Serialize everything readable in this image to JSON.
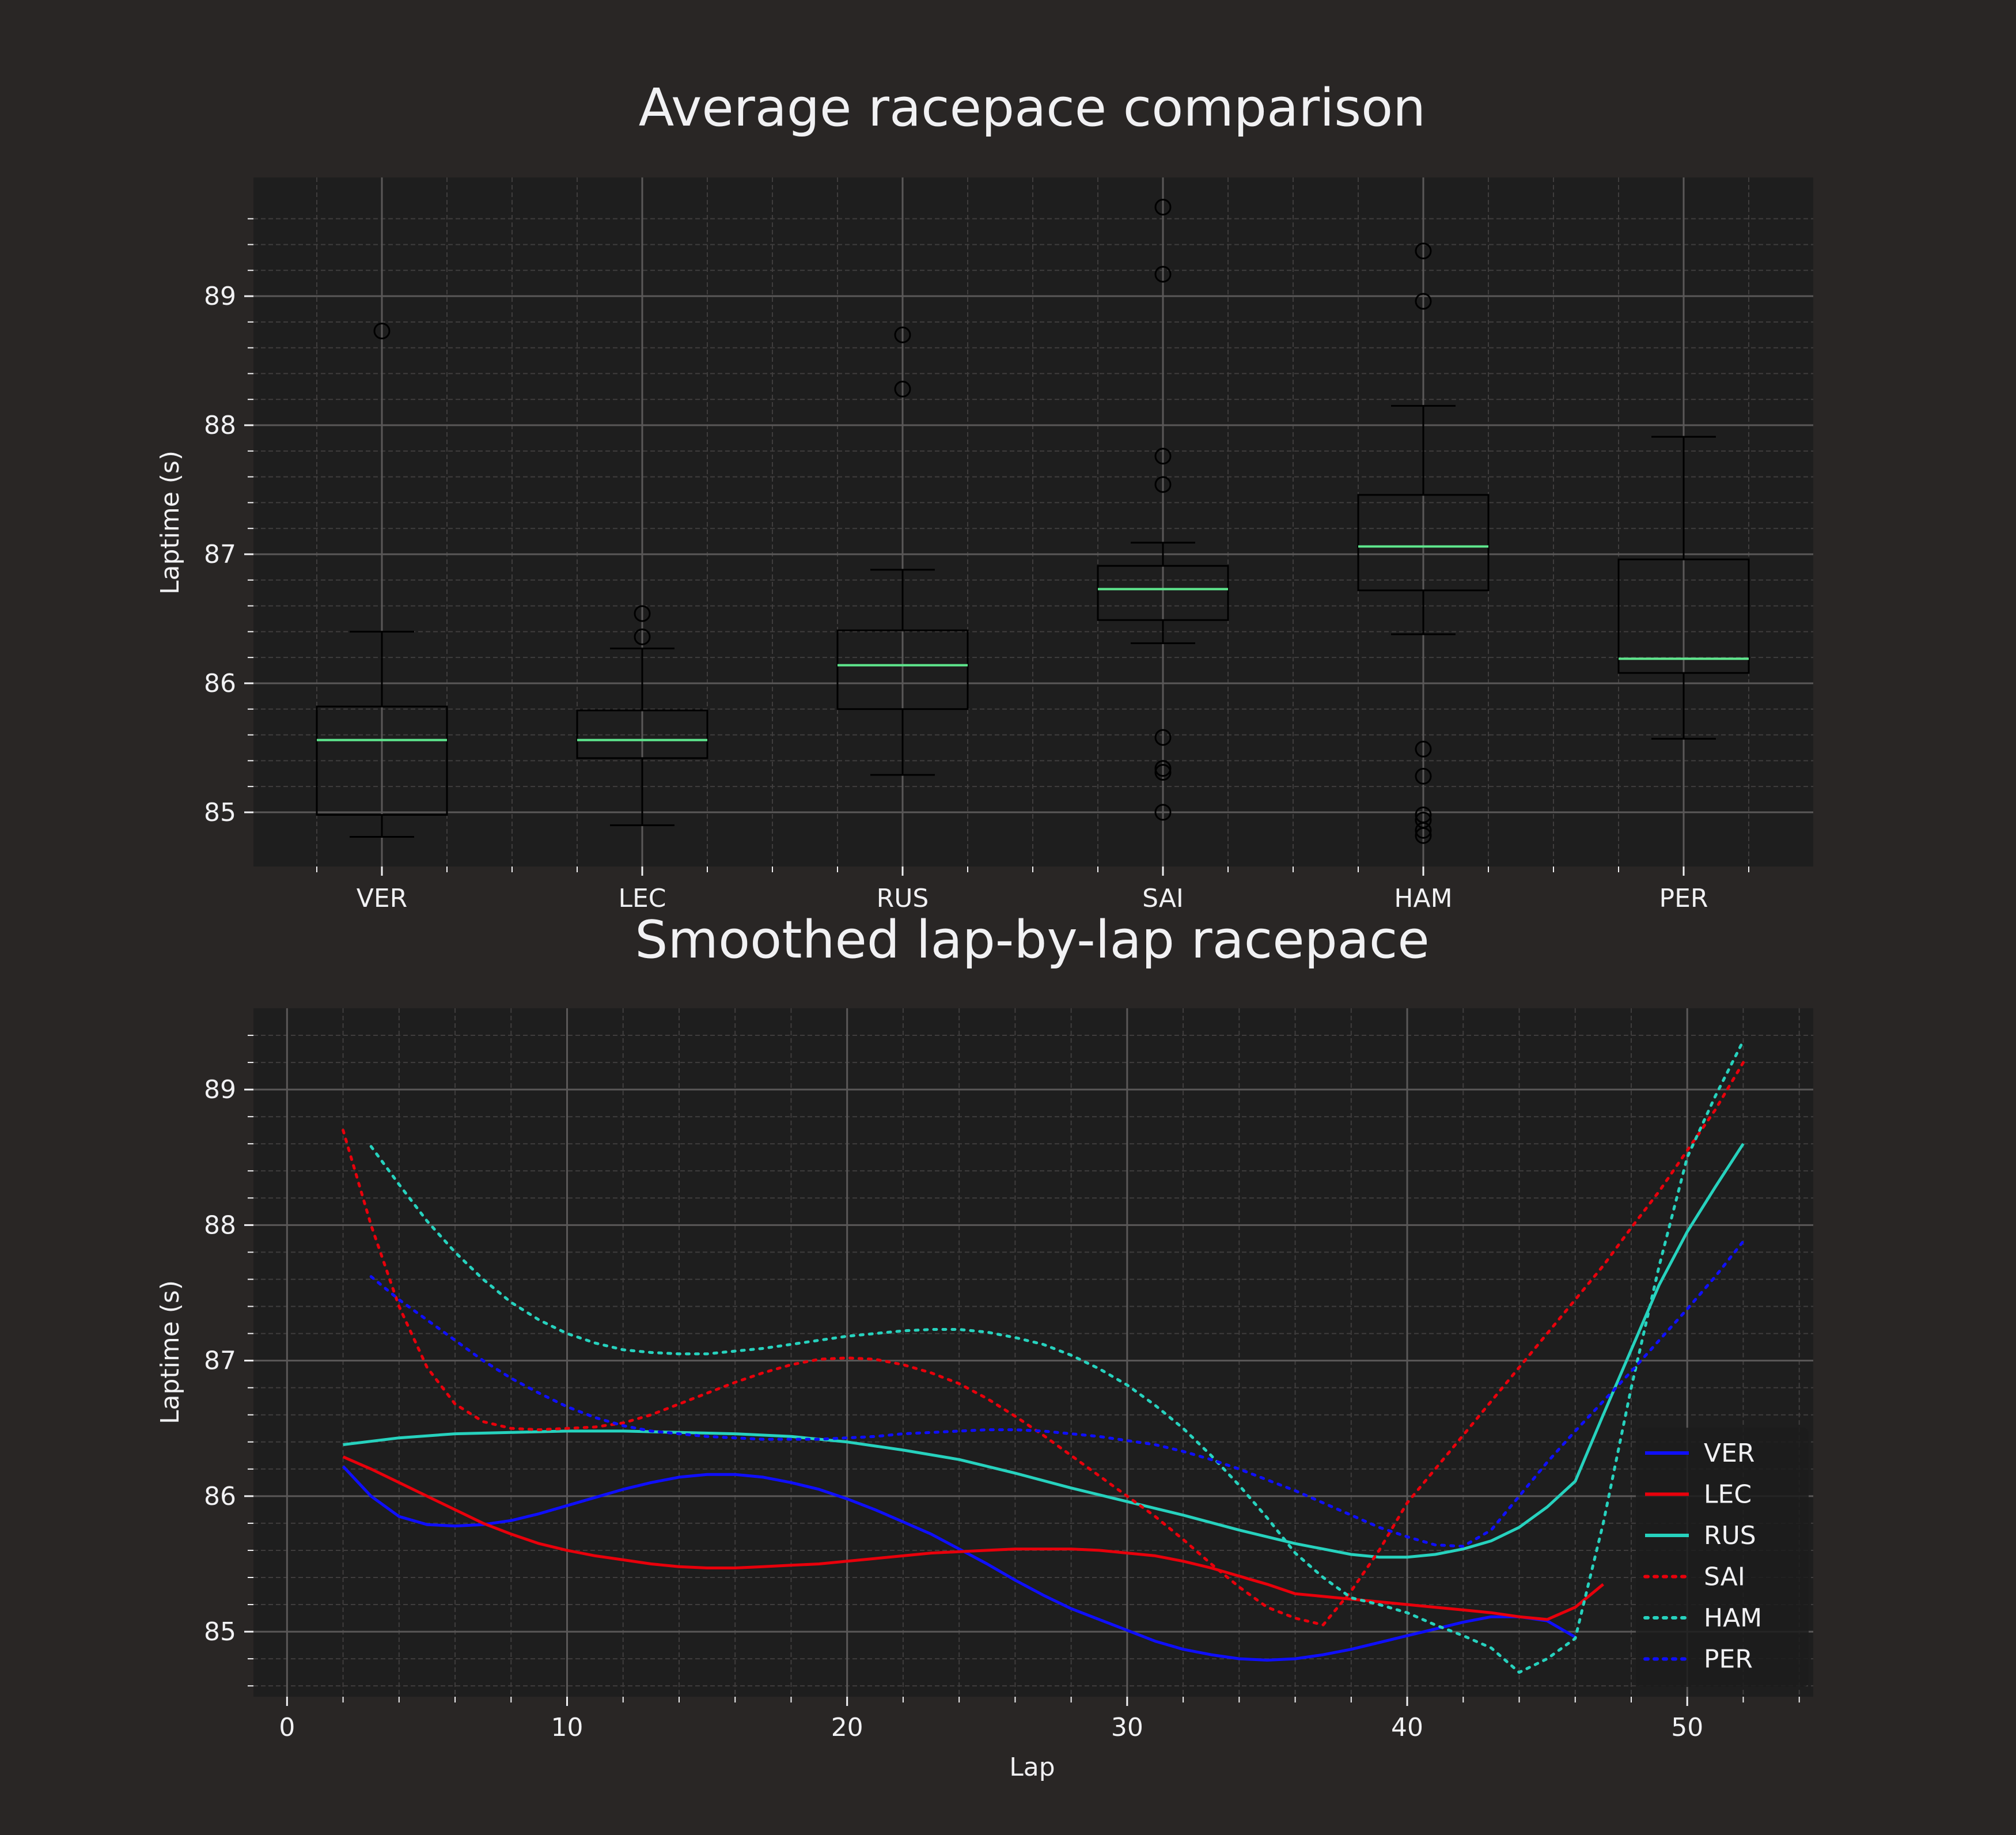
{
  "colors": {
    "figure_bg": "#292625",
    "axes_bg": "#1e1e1e",
    "text": "#f1f1f3",
    "grid_major": "#5a5858",
    "grid_minor": "#3f3d3d",
    "box": "#000000",
    "median": "#5fe88e",
    "VER": "#0f0fff",
    "LEC": "#e8000b",
    "RUS": "#27d2be",
    "SAI": "#e8000b",
    "HAM": "#27d2be",
    "PER": "#0f0fff"
  },
  "chart_data": [
    {
      "type": "box",
      "title": "Average racepace comparison",
      "xlabel": "",
      "ylabel": "Laptime (s)",
      "ylim": [
        84.58,
        89.92
      ],
      "yticks": [
        85,
        86,
        87,
        88,
        89
      ],
      "grid": true,
      "categories": [
        "VER",
        "LEC",
        "RUS",
        "SAI",
        "HAM",
        "PER"
      ],
      "boxes": [
        {
          "name": "VER",
          "whisker_low": 84.81,
          "q1": 84.98,
          "median": 85.56,
          "q3": 85.82,
          "whisker_high": 86.4,
          "outliers": [
            88.73
          ]
        },
        {
          "name": "LEC",
          "whisker_low": 84.9,
          "q1": 85.42,
          "median": 85.56,
          "q3": 85.79,
          "whisker_high": 86.27,
          "outliers": [
            86.36,
            86.54
          ]
        },
        {
          "name": "RUS",
          "whisker_low": 85.29,
          "q1": 85.8,
          "median": 86.14,
          "q3": 86.41,
          "whisker_high": 86.88,
          "outliers": [
            88.28,
            88.7
          ]
        },
        {
          "name": "SAI",
          "whisker_low": 86.31,
          "q1": 86.49,
          "median": 86.73,
          "q3": 86.91,
          "whisker_high": 87.09,
          "outliers": [
            85.0,
            85.31,
            85.34,
            85.58,
            87.54,
            87.76,
            89.17,
            89.69
          ]
        },
        {
          "name": "HAM",
          "whisker_low": 86.38,
          "q1": 86.72,
          "median": 87.06,
          "q3": 87.46,
          "whisker_high": 88.15,
          "outliers": [
            84.82,
            84.86,
            84.94,
            84.98,
            85.28,
            85.49,
            88.96,
            89.35
          ]
        },
        {
          "name": "PER",
          "whisker_low": 85.57,
          "q1": 86.08,
          "median": 86.19,
          "q3": 86.96,
          "whisker_high": 87.91,
          "outliers": []
        }
      ]
    },
    {
      "type": "line",
      "title": "Smoothed lap-by-lap racepace",
      "xlabel": "Lap",
      "ylabel": "Laptime (s)",
      "xlim": [
        -1.2,
        54.5
      ],
      "ylim": [
        84.52,
        89.6
      ],
      "xticks": [
        0,
        10,
        20,
        30,
        40,
        50
      ],
      "yticks": [
        85,
        86,
        87,
        88,
        89
      ],
      "grid": true,
      "legend": "lower-right",
      "series": [
        {
          "name": "VER",
          "style": "solid",
          "x": [
            2,
            3,
            4,
            5,
            6,
            7,
            8,
            9,
            10,
            11,
            12,
            13,
            14,
            15,
            16,
            17,
            18,
            19,
            20,
            21,
            22,
            23,
            24,
            25,
            26,
            27,
            28,
            29,
            30,
            31,
            32,
            33,
            34,
            35,
            36,
            37,
            38,
            39,
            40,
            41,
            42,
            43,
            44,
            45,
            46
          ],
          "y": [
            86.22,
            86.0,
            85.85,
            85.79,
            85.78,
            85.79,
            85.82,
            85.87,
            85.93,
            85.99,
            86.05,
            86.1,
            86.14,
            86.16,
            86.16,
            86.14,
            86.1,
            86.05,
            85.98,
            85.9,
            85.81,
            85.72,
            85.61,
            85.5,
            85.38,
            85.27,
            85.17,
            85.09,
            85.01,
            84.93,
            84.87,
            84.83,
            84.8,
            84.79,
            84.8,
            84.83,
            84.87,
            84.92,
            84.97,
            85.02,
            85.07,
            85.11,
            85.11,
            85.08,
            84.96
          ]
        },
        {
          "name": "LEC",
          "style": "solid",
          "x": [
            2,
            3,
            4,
            5,
            6,
            7,
            8,
            9,
            10,
            11,
            12,
            13,
            14,
            15,
            16,
            17,
            18,
            19,
            20,
            21,
            22,
            23,
            24,
            25,
            26,
            27,
            28,
            29,
            30,
            31,
            32,
            33,
            34,
            35,
            36,
            37,
            38,
            39,
            40,
            41,
            42,
            43,
            44,
            45,
            46,
            47
          ],
          "y": [
            86.29,
            86.2,
            86.1,
            86.0,
            85.9,
            85.8,
            85.72,
            85.65,
            85.6,
            85.56,
            85.53,
            85.5,
            85.48,
            85.47,
            85.47,
            85.48,
            85.49,
            85.5,
            85.52,
            85.54,
            85.56,
            85.58,
            85.59,
            85.6,
            85.61,
            85.61,
            85.61,
            85.6,
            85.58,
            85.56,
            85.52,
            85.47,
            85.41,
            85.35,
            85.28,
            85.26,
            85.24,
            85.22,
            85.2,
            85.18,
            85.16,
            85.14,
            85.11,
            85.09,
            85.18,
            85.35
          ]
        },
        {
          "name": "RUS",
          "style": "solid",
          "x": [
            2,
            4,
            6,
            8,
            10,
            12,
            14,
            16,
            18,
            20,
            22,
            24,
            26,
            28,
            30,
            32,
            34,
            36,
            37,
            38,
            39,
            40,
            41,
            42,
            43,
            44,
            45,
            46,
            47,
            48,
            49,
            50,
            51,
            52
          ],
          "y": [
            86.38,
            86.43,
            86.46,
            86.47,
            86.48,
            86.48,
            86.47,
            86.46,
            86.44,
            86.4,
            86.34,
            86.27,
            86.17,
            86.06,
            85.96,
            85.86,
            85.75,
            85.65,
            85.61,
            85.57,
            85.55,
            85.55,
            85.57,
            85.61,
            85.67,
            85.77,
            85.92,
            86.11,
            86.6,
            87.08,
            87.56,
            87.95,
            88.28,
            88.6
          ]
        },
        {
          "name": "SAI",
          "style": "dotted",
          "x": [
            2,
            3,
            4,
            5,
            6,
            7,
            8,
            9,
            10,
            11,
            12,
            13,
            14,
            15,
            16,
            17,
            18,
            19,
            20,
            21,
            22,
            23,
            24,
            25,
            26,
            27,
            28,
            29,
            30,
            31,
            32,
            33,
            34,
            35,
            36,
            37,
            38,
            39,
            40,
            41,
            42,
            43,
            44,
            45,
            46,
            47,
            48,
            49,
            50,
            51,
            52
          ],
          "y": [
            88.7,
            88.0,
            87.4,
            86.95,
            86.68,
            86.55,
            86.5,
            86.49,
            86.5,
            86.51,
            86.54,
            86.6,
            86.68,
            86.76,
            86.84,
            86.91,
            86.97,
            87.01,
            87.02,
            87.01,
            86.97,
            86.91,
            86.83,
            86.72,
            86.59,
            86.45,
            86.3,
            86.15,
            86.0,
            85.85,
            85.68,
            85.5,
            85.33,
            85.18,
            85.1,
            85.05,
            85.3,
            85.6,
            85.95,
            86.2,
            86.45,
            86.7,
            86.95,
            87.2,
            87.45,
            87.7,
            87.98,
            88.25,
            88.55,
            88.85,
            89.2
          ]
        },
        {
          "name": "HAM",
          "style": "dotted",
          "x": [
            3,
            4,
            5,
            6,
            7,
            8,
            9,
            10,
            11,
            12,
            13,
            14,
            15,
            16,
            17,
            18,
            19,
            20,
            21,
            22,
            23,
            24,
            25,
            26,
            27,
            28,
            29,
            30,
            31,
            32,
            33,
            34,
            35,
            36,
            37,
            38,
            39,
            40,
            41,
            42,
            43,
            44,
            45,
            46,
            47,
            48,
            49,
            50,
            51,
            52
          ],
          "y": [
            88.58,
            88.3,
            88.03,
            87.8,
            87.6,
            87.43,
            87.3,
            87.2,
            87.13,
            87.08,
            87.06,
            87.05,
            87.05,
            87.07,
            87.09,
            87.12,
            87.15,
            87.18,
            87.2,
            87.22,
            87.23,
            87.23,
            87.21,
            87.17,
            87.12,
            87.04,
            86.94,
            86.82,
            86.67,
            86.5,
            86.3,
            86.08,
            85.84,
            85.58,
            85.4,
            85.25,
            85.2,
            85.14,
            85.05,
            84.97,
            84.88,
            84.7,
            84.8,
            84.95,
            85.8,
            86.8,
            87.7,
            88.5,
            88.95,
            89.36
          ]
        },
        {
          "name": "PER",
          "style": "dotted",
          "x": [
            3,
            4,
            5,
            6,
            7,
            8,
            9,
            10,
            11,
            12,
            13,
            14,
            15,
            16,
            17,
            18,
            19,
            20,
            21,
            22,
            23,
            24,
            25,
            26,
            27,
            28,
            29,
            30,
            31,
            32,
            33,
            34,
            35,
            36,
            37,
            38,
            39,
            40,
            41,
            42,
            43,
            44,
            45,
            46,
            47,
            48,
            49,
            50,
            51,
            52
          ],
          "y": [
            87.62,
            87.45,
            87.3,
            87.15,
            87.0,
            86.87,
            86.76,
            86.66,
            86.58,
            86.52,
            86.48,
            86.46,
            86.44,
            86.43,
            86.42,
            86.42,
            86.42,
            86.43,
            86.44,
            86.46,
            86.47,
            86.48,
            86.49,
            86.49,
            86.48,
            86.46,
            86.44,
            86.41,
            86.38,
            86.33,
            86.27,
            86.2,
            86.12,
            86.04,
            85.95,
            85.86,
            85.77,
            85.7,
            85.64,
            85.63,
            85.75,
            86.0,
            86.25,
            86.48,
            86.7,
            86.92,
            87.15,
            87.38,
            87.62,
            87.88
          ]
        }
      ]
    }
  ]
}
